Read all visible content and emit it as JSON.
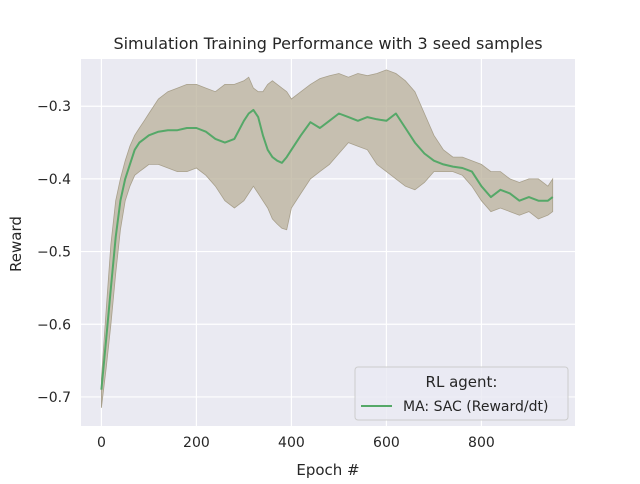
{
  "chart_data": {
    "type": "line",
    "title": "Simulation Training Performance with 3 seed samples",
    "xlabel": "Epoch #",
    "ylabel": "Reward",
    "xlim": [
      -43,
      997
    ],
    "ylim": [
      -0.74,
      -0.235
    ],
    "x_ticks": [
      0,
      200,
      400,
      600,
      800
    ],
    "x_tick_labels": [
      "0",
      "200",
      "400",
      "600",
      "800"
    ],
    "y_ticks": [
      -0.7,
      -0.6,
      -0.5,
      -0.4,
      -0.3
    ],
    "y_tick_labels": [
      "−0.7",
      "−0.6",
      "−0.5",
      "−0.4",
      "−0.3"
    ],
    "grid": true,
    "legend": {
      "title": "RL agent:",
      "placement": "lower-right",
      "entries": [
        "MA: SAC (Reward/dt)"
      ]
    },
    "series": [
      {
        "name": "MA: SAC (Reward/dt)",
        "color": "#55a868",
        "band_color": "#b9b09a",
        "x": [
          0,
          10,
          20,
          30,
          40,
          50,
          60,
          70,
          80,
          90,
          100,
          120,
          140,
          160,
          180,
          200,
          220,
          240,
          260,
          280,
          300,
          310,
          320,
          330,
          340,
          350,
          360,
          370,
          380,
          390,
          400,
          420,
          440,
          460,
          480,
          500,
          520,
          540,
          560,
          580,
          600,
          620,
          640,
          660,
          680,
          700,
          720,
          740,
          760,
          780,
          800,
          820,
          840,
          860,
          880,
          900,
          920,
          940,
          950
        ],
        "y": [
          -0.69,
          -0.62,
          -0.55,
          -0.48,
          -0.43,
          -0.4,
          -0.38,
          -0.36,
          -0.35,
          -0.345,
          -0.34,
          -0.335,
          -0.333,
          -0.333,
          -0.33,
          -0.33,
          -0.335,
          -0.345,
          -0.35,
          -0.345,
          -0.32,
          -0.31,
          -0.305,
          -0.315,
          -0.34,
          -0.36,
          -0.37,
          -0.375,
          -0.378,
          -0.37,
          -0.36,
          -0.34,
          -0.322,
          -0.33,
          -0.32,
          -0.31,
          -0.315,
          -0.32,
          -0.315,
          -0.318,
          -0.32,
          -0.31,
          -0.33,
          -0.35,
          -0.365,
          -0.375,
          -0.38,
          -0.383,
          -0.385,
          -0.39,
          -0.41,
          -0.425,
          -0.415,
          -0.42,
          -0.43,
          -0.425,
          -0.43,
          -0.43,
          -0.425
        ],
        "lower": [
          -0.715,
          -0.66,
          -0.6,
          -0.53,
          -0.47,
          -0.43,
          -0.41,
          -0.395,
          -0.39,
          -0.385,
          -0.38,
          -0.38,
          -0.385,
          -0.39,
          -0.39,
          -0.385,
          -0.395,
          -0.41,
          -0.43,
          -0.44,
          -0.43,
          -0.42,
          -0.41,
          -0.42,
          -0.43,
          -0.44,
          -0.455,
          -0.462,
          -0.468,
          -0.47,
          -0.44,
          -0.42,
          -0.4,
          -0.39,
          -0.38,
          -0.365,
          -0.35,
          -0.355,
          -0.36,
          -0.38,
          -0.39,
          -0.4,
          -0.41,
          -0.415,
          -0.405,
          -0.39,
          -0.39,
          -0.39,
          -0.395,
          -0.41,
          -0.43,
          -0.445,
          -0.44,
          -0.445,
          -0.45,
          -0.445,
          -0.455,
          -0.45,
          -0.445
        ],
        "upper": [
          -0.675,
          -0.58,
          -0.49,
          -0.43,
          -0.4,
          -0.375,
          -0.355,
          -0.34,
          -0.33,
          -0.32,
          -0.31,
          -0.29,
          -0.28,
          -0.275,
          -0.27,
          -0.27,
          -0.275,
          -0.28,
          -0.27,
          -0.27,
          -0.265,
          -0.26,
          -0.275,
          -0.28,
          -0.28,
          -0.27,
          -0.265,
          -0.27,
          -0.275,
          -0.28,
          -0.29,
          -0.28,
          -0.27,
          -0.262,
          -0.258,
          -0.255,
          -0.26,
          -0.255,
          -0.258,
          -0.255,
          -0.25,
          -0.255,
          -0.265,
          -0.28,
          -0.31,
          -0.34,
          -0.36,
          -0.37,
          -0.37,
          -0.375,
          -0.38,
          -0.39,
          -0.39,
          -0.4,
          -0.405,
          -0.4,
          -0.4,
          -0.41,
          -0.4
        ]
      }
    ]
  }
}
